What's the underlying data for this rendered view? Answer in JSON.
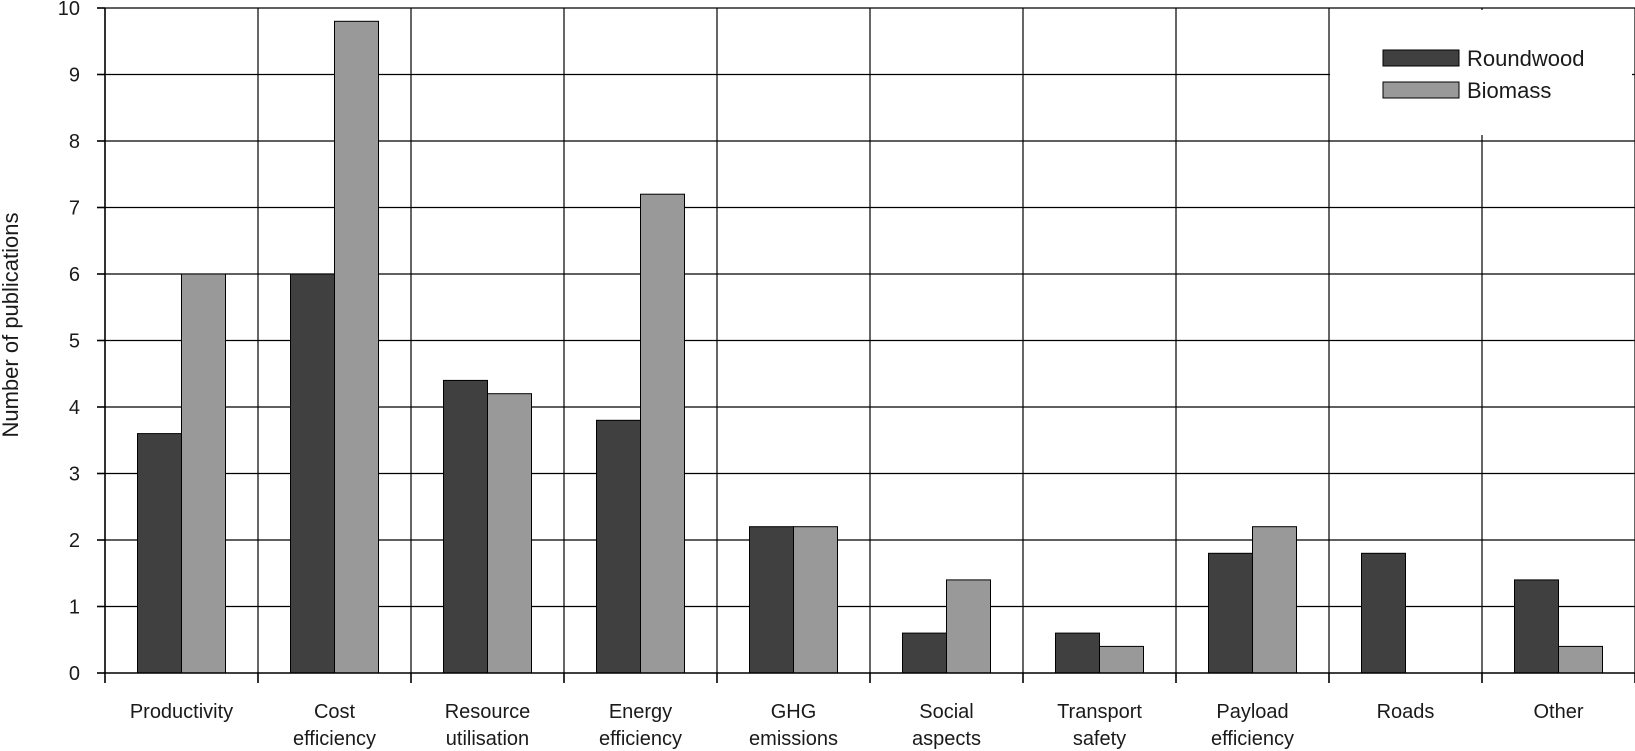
{
  "chart_data": {
    "type": "bar",
    "title": "",
    "xlabel": "",
    "ylabel": "Number of publications",
    "ylim": [
      0,
      10
    ],
    "yticks": [
      0,
      1,
      2,
      3,
      4,
      5,
      6,
      7,
      8,
      9,
      10
    ],
    "grid": true,
    "legend_position": "top-right",
    "categories": [
      [
        "Productivity"
      ],
      [
        "Cost",
        "efficiency"
      ],
      [
        "Resource",
        "utilisation"
      ],
      [
        "Energy",
        "efficiency"
      ],
      [
        "GHG",
        "emissions"
      ],
      [
        "Social",
        "aspects"
      ],
      [
        "Transport",
        "safety"
      ],
      [
        "Payload",
        "efficiency"
      ],
      [
        "Roads"
      ],
      [
        "Other"
      ]
    ],
    "series": [
      {
        "name": "Roundwood",
        "color": "#404040",
        "values": [
          3.6,
          6.0,
          4.4,
          3.8,
          2.2,
          0.6,
          0.6,
          1.8,
          1.8,
          1.4
        ]
      },
      {
        "name": "Biomass",
        "color": "#999999",
        "values": [
          6.0,
          9.8,
          4.2,
          7.2,
          2.2,
          1.4,
          0.4,
          2.2,
          0.0,
          0.4
        ]
      }
    ]
  }
}
